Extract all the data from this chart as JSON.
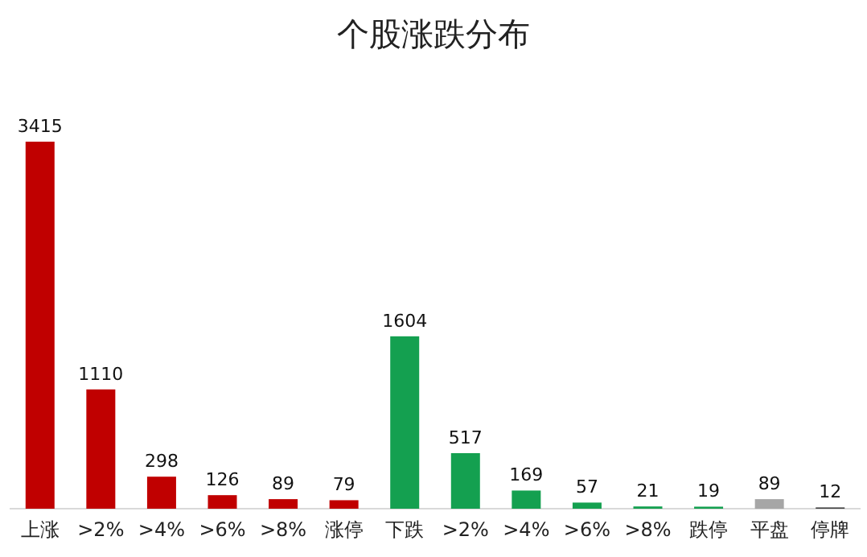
{
  "chart_data": {
    "type": "bar",
    "title": "个股涨跌分布",
    "categories": [
      "上涨",
      ">2%",
      ">4%",
      ">6%",
      ">8%",
      "涨停",
      "下跌",
      ">2%",
      ">4%",
      ">6%",
      ">8%",
      "跌停",
      "平盘",
      "停牌"
    ],
    "values": [
      3415,
      1110,
      298,
      126,
      89,
      79,
      1604,
      517,
      169,
      57,
      21,
      19,
      89,
      12
    ],
    "colors": [
      "#c00000",
      "#c00000",
      "#c00000",
      "#c00000",
      "#c00000",
      "#c00000",
      "#14a050",
      "#14a050",
      "#14a050",
      "#14a050",
      "#14a050",
      "#14a050",
      "#a6a6a6",
      "#404040"
    ],
    "data_labels": true
  }
}
